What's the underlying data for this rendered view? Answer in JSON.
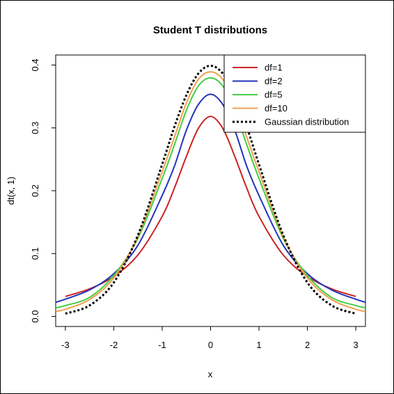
{
  "chart_data": {
    "type": "line",
    "title": "Student T distributions",
    "xlabel": "x",
    "ylabel": "dt(x, 1)",
    "xlim": [
      -3.2,
      3.2
    ],
    "ylim": [
      -0.016,
      0.416
    ],
    "x_ticks": [
      -3,
      -2,
      -1,
      0,
      1,
      2,
      3
    ],
    "y_ticks": [
      0.0,
      0.1,
      0.2,
      0.3,
      0.4
    ],
    "x_tick_labels": [
      "-3",
      "-2",
      "-1",
      "0",
      "1",
      "2",
      "3"
    ],
    "y_tick_labels": [
      "0.0",
      "0.1",
      "0.2",
      "0.3",
      "0.4"
    ],
    "grid": false,
    "legend_position": "top-right",
    "series": [
      {
        "name": "df=1",
        "color": "#cc2222",
        "dash": "solid",
        "x": [
          -3,
          -2.5,
          -2,
          -1.5,
          -1,
          -0.75,
          -0.5,
          -0.25,
          0,
          0.25,
          0.5,
          0.75,
          1,
          1.5,
          2,
          2.5,
          3
        ],
        "y": [
          0.0318,
          0.0439,
          0.0637,
          0.0979,
          0.1592,
          0.2037,
          0.2546,
          0.2996,
          0.3183,
          0.2996,
          0.2546,
          0.2037,
          0.1592,
          0.0979,
          0.0637,
          0.0439,
          0.0318
        ]
      },
      {
        "name": "df=2",
        "color": "#2233bb",
        "dash": "solid",
        "x": [
          -3.2,
          -3,
          -2.5,
          -2,
          -1.5,
          -1,
          -0.75,
          -0.5,
          -0.25,
          0,
          0.25,
          0.5,
          0.75,
          1,
          1.5,
          2,
          2.5,
          3,
          3.2
        ],
        "y": [
          0.0225,
          0.0274,
          0.0422,
          0.068,
          0.1134,
          0.1925,
          0.2384,
          0.2962,
          0.3375,
          0.3536,
          0.3375,
          0.2962,
          0.2384,
          0.1925,
          0.1134,
          0.068,
          0.0422,
          0.0274,
          0.0225
        ]
      },
      {
        "name": "df=5",
        "color": "#44cc44",
        "dash": "solid",
        "x": [
          -3.2,
          -3,
          -2.5,
          -2,
          -1.5,
          -1,
          -0.75,
          -0.5,
          -0.25,
          0,
          0.25,
          0.5,
          0.75,
          1,
          1.5,
          2,
          2.5,
          3,
          3.2
        ],
        "y": [
          0.0136,
          0.0173,
          0.0303,
          0.0651,
          0.1245,
          0.2197,
          0.2725,
          0.3279,
          0.3669,
          0.3796,
          0.3669,
          0.3279,
          0.2725,
          0.2197,
          0.1245,
          0.0651,
          0.0303,
          0.0173,
          0.0136
        ]
      },
      {
        "name": "df=10",
        "color": "#f0a050",
        "dash": "solid",
        "x": [
          -3.2,
          -3,
          -2.5,
          -2,
          -1.5,
          -1,
          -0.75,
          -0.5,
          -0.25,
          0,
          0.25,
          0.5,
          0.75,
          1,
          1.5,
          2,
          2.5,
          3,
          3.2
        ],
        "y": [
          0.0079,
          0.0114,
          0.0269,
          0.0611,
          0.1274,
          0.2304,
          0.2846,
          0.3397,
          0.3774,
          0.3891,
          0.3774,
          0.3397,
          0.2846,
          0.2304,
          0.1274,
          0.0611,
          0.0269,
          0.0114,
          0.0079
        ]
      },
      {
        "name": "Gaussian distribution",
        "color": "#000000",
        "dash": "dotted",
        "x": [
          -3,
          -2.5,
          -2,
          -1.5,
          -1,
          -0.75,
          -0.5,
          -0.25,
          0,
          0.25,
          0.5,
          0.75,
          1,
          1.5,
          2,
          2.5,
          3
        ],
        "y": [
          0.0044,
          0.0175,
          0.054,
          0.1295,
          0.242,
          0.3011,
          0.3521,
          0.3867,
          0.3989,
          0.3867,
          0.3521,
          0.3011,
          0.242,
          0.1295,
          0.054,
          0.0175,
          0.0044
        ]
      }
    ]
  }
}
